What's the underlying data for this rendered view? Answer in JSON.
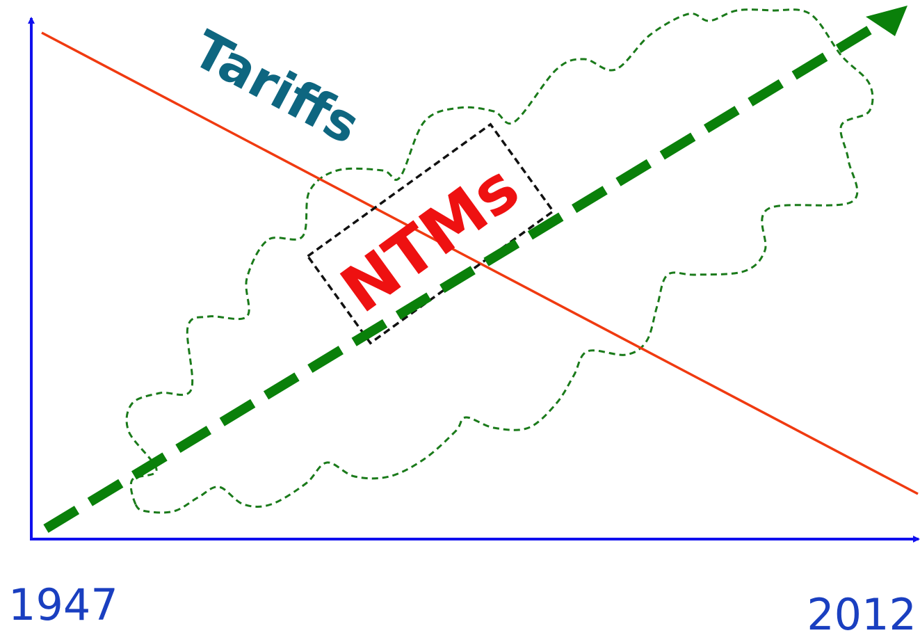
{
  "labels": {
    "decreasing": "Tariffs",
    "increasing": "NTMs",
    "start_year": "1947",
    "end_year": "2012"
  }
}
